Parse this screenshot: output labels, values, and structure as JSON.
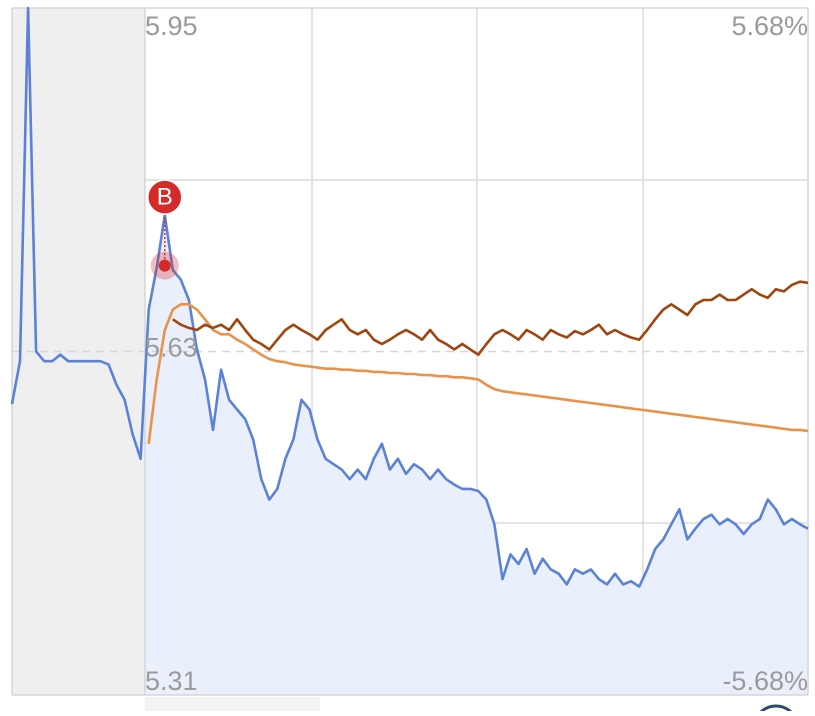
{
  "chart_data": {
    "type": "line",
    "ylim": [
      5.31,
      5.95
    ],
    "yticks": [
      5.95,
      5.63,
      5.31
    ],
    "y2lim": [
      -5.68,
      5.68
    ],
    "y2ticks": [
      {
        "value": 5.68,
        "label": "5.68%"
      },
      {
        "value": -5.68,
        "label": "-5.68%"
      }
    ],
    "grid": true,
    "series": [
      {
        "color": "#5b82d6",
        "fill": "#eaf0fb",
        "values": [
          5.581,
          5.621,
          5.95,
          5.63,
          5.621,
          5.621,
          5.627,
          5.621,
          5.621,
          5.621,
          5.621,
          5.621,
          5.618,
          5.599,
          5.585,
          5.553,
          5.53,
          5.669,
          5.708,
          5.757,
          5.706,
          5.697,
          5.678,
          5.632,
          5.604,
          5.557,
          5.613,
          5.585,
          5.576,
          5.567,
          5.548,
          5.511,
          5.492,
          5.502,
          5.53,
          5.548,
          5.585,
          5.576,
          5.548,
          5.53,
          5.525,
          5.52,
          5.511,
          5.52,
          5.511,
          5.53,
          5.544,
          5.52,
          5.53,
          5.516,
          5.525,
          5.52,
          5.511,
          5.52,
          5.511,
          5.506,
          5.502,
          5.502,
          5.5,
          5.492,
          5.469,
          5.418,
          5.441,
          5.432,
          5.446,
          5.423,
          5.437,
          5.427,
          5.423,
          5.413,
          5.427,
          5.423,
          5.427,
          5.418,
          5.413,
          5.423,
          5.413,
          5.416,
          5.411,
          5.427,
          5.446,
          5.455,
          5.469,
          5.483,
          5.455,
          5.465,
          5.474,
          5.478,
          5.469,
          5.474,
          5.469,
          5.46,
          5.469,
          5.474,
          5.492,
          5.483,
          5.469,
          5.474,
          5.469,
          5.465
        ]
      },
      {
        "color": "#e8924a",
        "values": [
          null,
          null,
          null,
          null,
          null,
          null,
          null,
          null,
          null,
          null,
          null,
          null,
          null,
          null,
          null,
          null,
          null,
          5.544,
          5.604,
          5.65,
          5.669,
          5.674,
          5.674,
          5.669,
          5.66,
          5.65,
          5.646,
          5.646,
          5.641,
          5.637,
          5.632,
          5.627,
          5.623,
          5.621,
          5.62,
          5.618,
          5.617,
          5.616,
          5.615,
          5.614,
          5.614,
          5.613,
          5.613,
          5.612,
          5.612,
          5.611,
          5.611,
          5.61,
          5.61,
          5.609,
          5.609,
          5.608,
          5.608,
          5.607,
          5.607,
          5.606,
          5.606,
          5.605,
          5.604,
          5.599,
          5.595,
          5.593,
          5.592,
          5.591,
          5.59,
          5.589,
          5.588,
          5.587,
          5.586,
          5.585,
          5.584,
          5.583,
          5.582,
          5.581,
          5.58,
          5.579,
          5.578,
          5.577,
          5.576,
          5.575,
          5.574,
          5.573,
          5.572,
          5.571,
          5.57,
          5.569,
          5.568,
          5.567,
          5.566,
          5.565,
          5.564,
          5.563,
          5.562,
          5.561,
          5.56,
          5.559,
          5.558,
          5.557,
          5.557,
          5.556
        ]
      },
      {
        "color": "#a0450f",
        "values": [
          null,
          null,
          null,
          null,
          null,
          null,
          null,
          null,
          null,
          null,
          null,
          null,
          null,
          null,
          null,
          null,
          null,
          null,
          null,
          null,
          5.66,
          5.655,
          5.652,
          5.65,
          5.655,
          5.652,
          5.655,
          5.65,
          5.66,
          5.65,
          5.641,
          5.637,
          5.632,
          5.641,
          5.65,
          5.655,
          5.65,
          5.646,
          5.641,
          5.65,
          5.655,
          5.66,
          5.65,
          5.646,
          5.65,
          5.641,
          5.637,
          5.641,
          5.646,
          5.65,
          5.646,
          5.641,
          5.65,
          5.641,
          5.637,
          5.632,
          5.637,
          5.632,
          5.627,
          5.637,
          5.646,
          5.65,
          5.646,
          5.641,
          5.65,
          5.646,
          5.641,
          5.65,
          5.646,
          5.643,
          5.649,
          5.646,
          5.65,
          5.655,
          5.646,
          5.65,
          5.646,
          5.643,
          5.641,
          5.65,
          5.66,
          5.669,
          5.674,
          5.669,
          5.664,
          5.674,
          5.678,
          5.678,
          5.683,
          5.678,
          5.678,
          5.683,
          5.688,
          5.683,
          5.68,
          5.688,
          5.686,
          5.692,
          5.695,
          5.694
        ]
      }
    ],
    "annotation": {
      "text": "B",
      "point": 19,
      "price": 5.71,
      "color": "#d42a2a"
    }
  }
}
